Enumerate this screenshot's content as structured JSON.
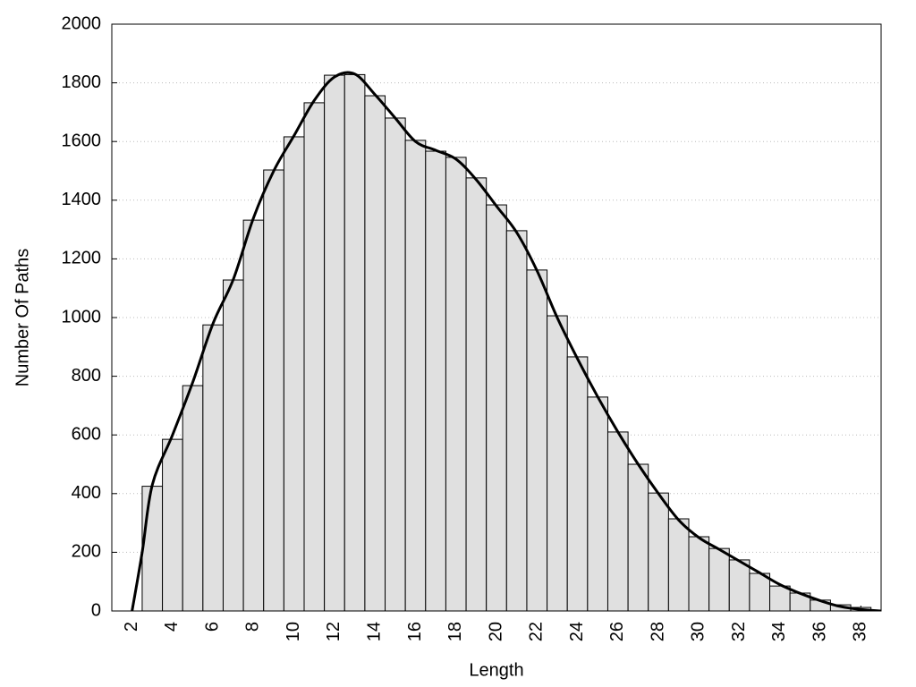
{
  "chart_data": {
    "type": "histogram",
    "x_label": "Length",
    "y_label": "Number Of Paths",
    "bins": [
      2.5,
      3.5,
      4.5,
      5.5,
      6.5,
      7.5,
      8.5,
      9.5,
      10.5,
      11.5,
      12.5,
      13.5,
      14.5,
      15.5,
      16.5,
      17.5,
      18.5,
      19.5,
      20.5,
      21.5,
      22.5,
      23.5,
      24.5,
      25.5,
      26.5,
      27.5,
      28.5,
      29.5,
      30.5,
      31.5,
      32.5,
      33.5,
      34.5,
      35.5,
      36.5,
      37.5,
      38.5
    ],
    "values": [
      425,
      585,
      768,
      975,
      1128,
      1332,
      1503,
      1616,
      1732,
      1826,
      1828,
      1756,
      1680,
      1604,
      1567,
      1546,
      1476,
      1384,
      1296,
      1162,
      1006,
      866,
      729,
      610,
      500,
      402,
      314,
      253,
      213,
      174,
      128,
      85,
      61,
      37,
      21,
      12
    ],
    "color": "#e0e0e0",
    "edge_color": "#000000",
    "line": {
      "x": [
        2,
        2.5,
        3,
        4,
        5,
        6,
        7,
        8,
        9,
        10,
        11,
        12,
        13,
        14,
        15,
        16,
        17,
        18,
        19,
        20,
        21,
        22,
        23,
        24,
        25,
        26,
        27,
        28,
        29,
        30,
        31,
        32,
        33,
        34,
        35,
        36,
        37,
        38,
        39
      ],
      "values": [
        0,
        200,
        430,
        600,
        780,
        980,
        1130,
        1340,
        1500,
        1620,
        1740,
        1820,
        1830,
        1760,
        1680,
        1600,
        1570,
        1540,
        1470,
        1380,
        1290,
        1160,
        1000,
        860,
        730,
        610,
        500,
        400,
        310,
        250,
        210,
        170,
        130,
        90,
        60,
        35,
        15,
        5,
        0
      ],
      "color": "#000000"
    },
    "xlim": [
      1,
      39
    ],
    "xticks": [
      2,
      4,
      6,
      8,
      10,
      12,
      14,
      16,
      18,
      20,
      22,
      24,
      26,
      28,
      30,
      32,
      34,
      36,
      38
    ],
    "ylim": [
      0,
      2000
    ],
    "yticks": [
      0,
      200,
      400,
      600,
      800,
      1000,
      1200,
      1400,
      1600,
      1800,
      2000
    ],
    "grid": true
  }
}
